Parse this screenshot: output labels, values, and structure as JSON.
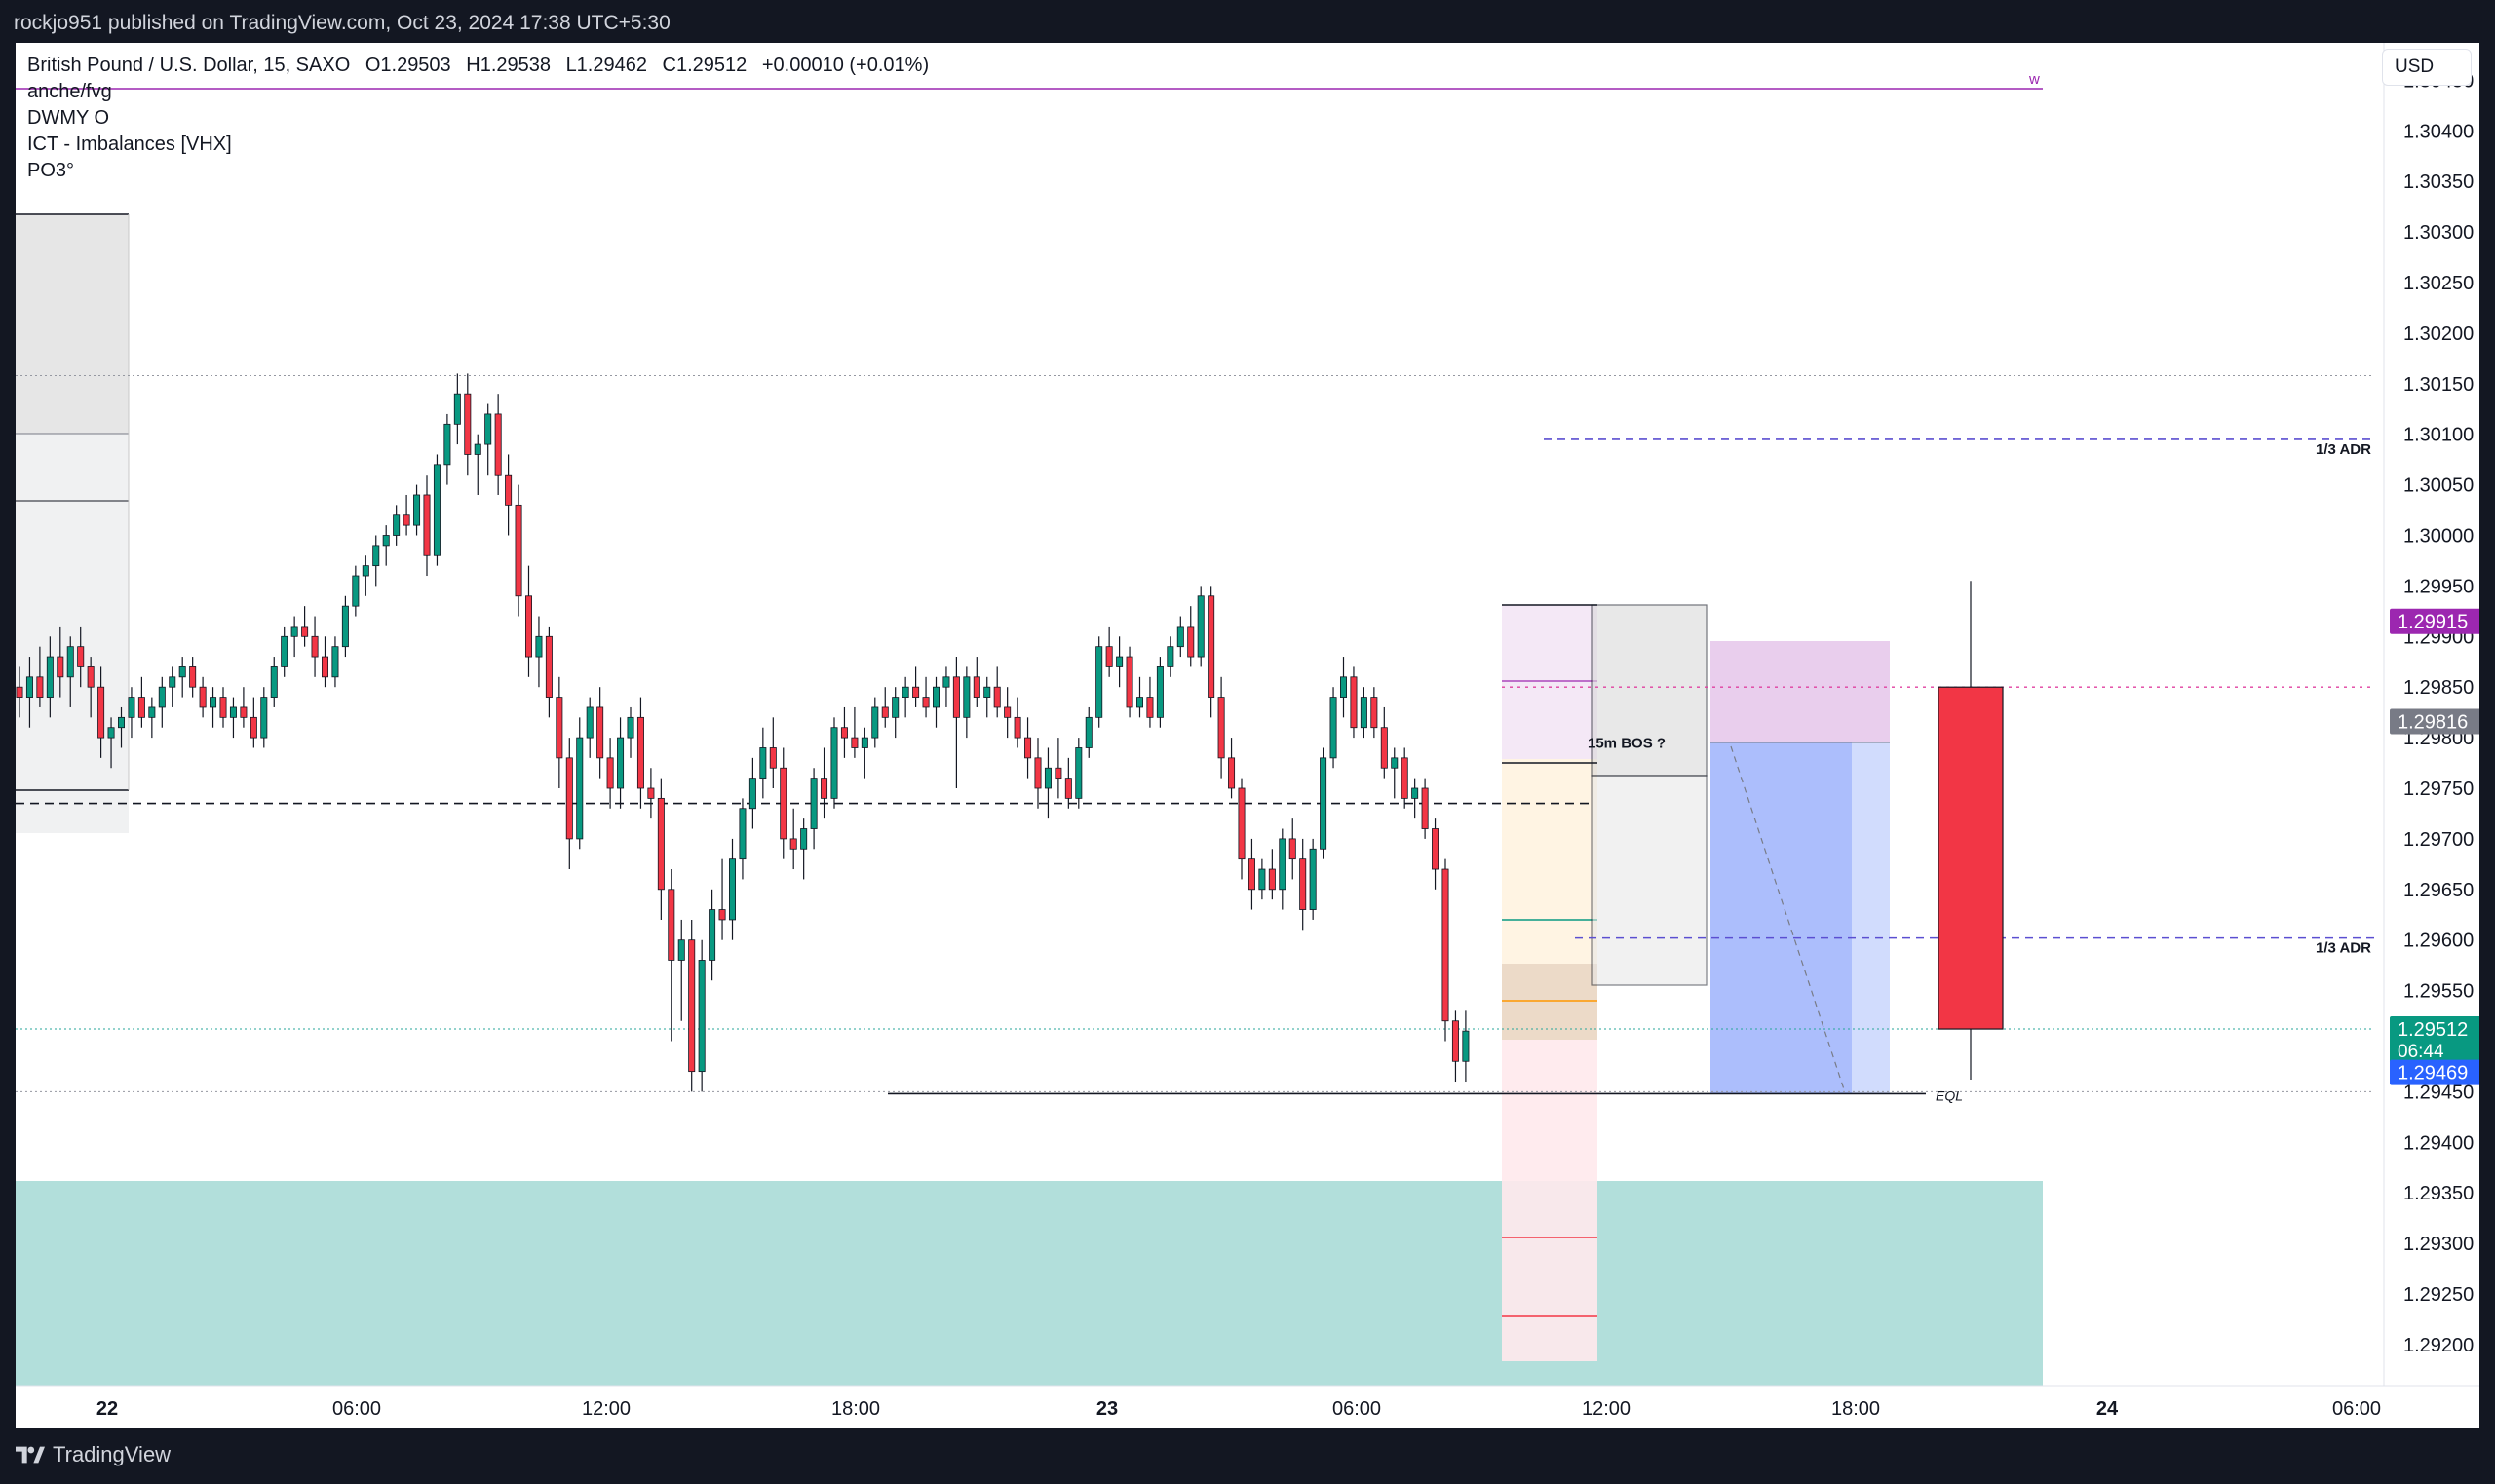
{
  "header": {
    "publish_text": "rockjo951 published on TradingView.com, Oct 23, 2024 17:38 UTC+5:30"
  },
  "legend": {
    "symbol": "British Pound / U.S. Dollar, 15, SAXO",
    "open": "O1.29503",
    "high": "H1.29538",
    "low": "L1.29462",
    "close": "C1.29512",
    "change": "+0.00010 (+0.01%)",
    "indicators": [
      "anche/fvg",
      "DWMY O",
      "ICT - Imbalances [VHX]",
      "PO3°"
    ]
  },
  "currency": "USD",
  "footer": {
    "brand": "TradingView"
  },
  "colors": {
    "up": "#089981",
    "down": "#f23645",
    "grid": "#9598a1",
    "pink_dotted": "#e040a0",
    "purple_dash": "#5b4fd1",
    "teal_zone": "#b2dfdb",
    "red_candle": "#f23645",
    "label_purple": "#9c27b0",
    "label_gray": "#787b86",
    "label_green": "#089981",
    "label_blue": "#2962ff"
  },
  "chart_data": {
    "type": "candlestick",
    "symbol": "GBPUSD",
    "timeframe": "15",
    "ylim": [
      1.2918,
      1.3048
    ],
    "y_ticks": [
      "1.30450",
      "1.30400",
      "1.30350",
      "1.30300",
      "1.30250",
      "1.30200",
      "1.30150",
      "1.30100",
      "1.30050",
      "1.30000",
      "1.29950",
      "1.29900",
      "1.29850",
      "1.29800",
      "1.29750",
      "1.29700",
      "1.29650",
      "1.29600",
      "1.29550",
      "1.29500",
      "1.29450",
      "1.29400",
      "1.29350",
      "1.29300",
      "1.29250",
      "1.29200"
    ],
    "x_ticks": [
      "22",
      "06:00",
      "12:00",
      "18:00",
      "23",
      "06:00",
      "12:00",
      "18:00",
      "24",
      "06:00"
    ],
    "price_labels": [
      {
        "text": "1.29915",
        "price": 1.29915,
        "color": "#9c27b0"
      },
      {
        "text": "1.29816",
        "price": 1.29816,
        "color": "#787b86"
      },
      {
        "text": "1.29512",
        "sub": "06:44",
        "price": 1.29512,
        "color": "#089981"
      },
      {
        "text": "1.29469",
        "price": 1.29469,
        "color": "#2962ff"
      }
    ],
    "annotations": [
      {
        "text": "1/3 ADR",
        "price": 1.30095
      },
      {
        "text": "1/3 ADR",
        "price": 1.29602
      },
      {
        "text": "15m BOS ?",
        "price": 1.29795
      },
      {
        "text": "EQL",
        "price": 1.29448
      },
      {
        "text": "w",
        "price": 1.30462
      }
    ],
    "levels": {
      "prior_high_dotted": 1.30158,
      "black_dashed": 1.29735,
      "pink_dotted": 1.2985,
      "current_dotted": 1.29512,
      "gray_dotted_low": 1.2945,
      "eql_line": 1.29448
    },
    "po3_candle": {
      "open": 1.2985,
      "high": 1.29955,
      "low": 1.29462,
      "close": 1.29512
    },
    "candles": [
      [
        1.2985,
        1.2987,
        1.2982,
        1.2984
      ],
      [
        1.2984,
        1.2988,
        1.2981,
        1.2986
      ],
      [
        1.2986,
        1.2989,
        1.2983,
        1.2984
      ],
      [
        1.2984,
        1.299,
        1.2982,
        1.2988
      ],
      [
        1.2988,
        1.2991,
        1.2984,
        1.2986
      ],
      [
        1.2986,
        1.299,
        1.2983,
        1.2989
      ],
      [
        1.2989,
        1.2991,
        1.2985,
        1.2987
      ],
      [
        1.2987,
        1.2988,
        1.2982,
        1.2985
      ],
      [
        1.2985,
        1.2987,
        1.2978,
        1.298
      ],
      [
        1.298,
        1.2982,
        1.2977,
        1.2981
      ],
      [
        1.2981,
        1.2983,
        1.2979,
        1.2982
      ],
      [
        1.2982,
        1.2985,
        1.298,
        1.2984
      ],
      [
        1.2984,
        1.2986,
        1.2981,
        1.2982
      ],
      [
        1.2982,
        1.2984,
        1.298,
        1.2983
      ],
      [
        1.2983,
        1.2986,
        1.2981,
        1.2985
      ],
      [
        1.2985,
        1.2987,
        1.2983,
        1.2986
      ],
      [
        1.2986,
        1.2988,
        1.2984,
        1.2987
      ],
      [
        1.2987,
        1.2988,
        1.2984,
        1.2985
      ],
      [
        1.2985,
        1.2986,
        1.2982,
        1.2983
      ],
      [
        1.2983,
        1.2985,
        1.2981,
        1.2984
      ],
      [
        1.2984,
        1.2985,
        1.2981,
        1.2982
      ],
      [
        1.2982,
        1.2984,
        1.298,
        1.2983
      ],
      [
        1.2983,
        1.2985,
        1.2981,
        1.2982
      ],
      [
        1.2982,
        1.2984,
        1.2979,
        1.298
      ],
      [
        1.298,
        1.2985,
        1.2979,
        1.2984
      ],
      [
        1.2984,
        1.2988,
        1.2983,
        1.2987
      ],
      [
        1.2987,
        1.2991,
        1.2986,
        1.299
      ],
      [
        1.299,
        1.2992,
        1.2988,
        1.2991
      ],
      [
        1.2991,
        1.2993,
        1.2989,
        1.299
      ],
      [
        1.299,
        1.2992,
        1.2986,
        1.2988
      ],
      [
        1.2988,
        1.299,
        1.2985,
        1.2986
      ],
      [
        1.2986,
        1.299,
        1.2985,
        1.2989
      ],
      [
        1.2989,
        1.2994,
        1.2988,
        1.2993
      ],
      [
        1.2993,
        1.2997,
        1.2992,
        1.2996
      ],
      [
        1.2996,
        1.2998,
        1.2994,
        1.2997
      ],
      [
        1.2997,
        1.3,
        1.2995,
        1.2999
      ],
      [
        1.2999,
        1.3001,
        1.2997,
        1.3
      ],
      [
        1.3,
        1.3003,
        1.2999,
        1.3002
      ],
      [
        1.3002,
        1.3004,
        1.3,
        1.3001
      ],
      [
        1.3001,
        1.3005,
        1.3,
        1.3004
      ],
      [
        1.3004,
        1.3006,
        1.2996,
        1.2998
      ],
      [
        1.2998,
        1.3008,
        1.2997,
        1.3007
      ],
      [
        1.3007,
        1.3012,
        1.3005,
        1.3011
      ],
      [
        1.3011,
        1.3016,
        1.3009,
        1.3014
      ],
      [
        1.3014,
        1.3016,
        1.3006,
        1.3008
      ],
      [
        1.3008,
        1.301,
        1.3004,
        1.3009
      ],
      [
        1.3009,
        1.3013,
        1.3006,
        1.3012
      ],
      [
        1.3012,
        1.3014,
        1.3004,
        1.3006
      ],
      [
        1.3006,
        1.3008,
        1.3,
        1.3003
      ],
      [
        1.3003,
        1.3005,
        1.2992,
        1.2994
      ],
      [
        1.2994,
        1.2997,
        1.2986,
        1.2988
      ],
      [
        1.2988,
        1.2992,
        1.2985,
        1.299
      ],
      [
        1.299,
        1.2991,
        1.2982,
        1.2984
      ],
      [
        1.2984,
        1.2986,
        1.2975,
        1.2978
      ],
      [
        1.2978,
        1.298,
        1.2967,
        1.297
      ],
      [
        1.297,
        1.2982,
        1.2969,
        1.298
      ],
      [
        1.298,
        1.2984,
        1.2978,
        1.2983
      ],
      [
        1.2983,
        1.2985,
        1.2976,
        1.2978
      ],
      [
        1.2978,
        1.298,
        1.2973,
        1.2975
      ],
      [
        1.2975,
        1.2982,
        1.2973,
        1.298
      ],
      [
        1.298,
        1.2983,
        1.2978,
        1.2982
      ],
      [
        1.2982,
        1.2984,
        1.2973,
        1.2975
      ],
      [
        1.2975,
        1.2977,
        1.2972,
        1.2974
      ],
      [
        1.2974,
        1.2976,
        1.2962,
        1.2965
      ],
      [
        1.2965,
        1.2967,
        1.295,
        1.2958
      ],
      [
        1.2958,
        1.2962,
        1.2952,
        1.296
      ],
      [
        1.296,
        1.2962,
        1.2945,
        1.2947
      ],
      [
        1.2947,
        1.296,
        1.2945,
        1.2958
      ],
      [
        1.2958,
        1.2965,
        1.2956,
        1.2963
      ],
      [
        1.2963,
        1.2968,
        1.296,
        1.2962
      ],
      [
        1.2962,
        1.297,
        1.296,
        1.2968
      ],
      [
        1.2968,
        1.2974,
        1.2966,
        1.2973
      ],
      [
        1.2973,
        1.2978,
        1.2971,
        1.2976
      ],
      [
        1.2976,
        1.2981,
        1.2974,
        1.2979
      ],
      [
        1.2979,
        1.2982,
        1.2975,
        1.2977
      ],
      [
        1.2977,
        1.2979,
        1.2968,
        1.297
      ],
      [
        1.297,
        1.2973,
        1.2967,
        1.2969
      ],
      [
        1.2969,
        1.2972,
        1.2966,
        1.2971
      ],
      [
        1.2971,
        1.2977,
        1.2969,
        1.2976
      ],
      [
        1.2976,
        1.2979,
        1.2972,
        1.2974
      ],
      [
        1.2974,
        1.2982,
        1.2973,
        1.2981
      ],
      [
        1.2981,
        1.2983,
        1.2978,
        1.298
      ],
      [
        1.298,
        1.2983,
        1.2978,
        1.2979
      ],
      [
        1.2979,
        1.2981,
        1.2976,
        1.298
      ],
      [
        1.298,
        1.2984,
        1.2979,
        1.2983
      ],
      [
        1.2983,
        1.2985,
        1.2981,
        1.2982
      ],
      [
        1.2982,
        1.2985,
        1.298,
        1.2984
      ],
      [
        1.2984,
        1.2986,
        1.2982,
        1.2985
      ],
      [
        1.2985,
        1.2987,
        1.2983,
        1.2984
      ],
      [
        1.2984,
        1.2986,
        1.2982,
        1.2983
      ],
      [
        1.2983,
        1.2986,
        1.2981,
        1.2985
      ],
      [
        1.2985,
        1.2987,
        1.2983,
        1.2986
      ],
      [
        1.2986,
        1.2988,
        1.2975,
        1.2982
      ],
      [
        1.2982,
        1.2987,
        1.298,
        1.2986
      ],
      [
        1.2986,
        1.2988,
        1.2983,
        1.2984
      ],
      [
        1.2984,
        1.2986,
        1.2982,
        1.2985
      ],
      [
        1.2985,
        1.2987,
        1.2982,
        1.2983
      ],
      [
        1.2983,
        1.2985,
        1.298,
        1.2982
      ],
      [
        1.2982,
        1.2984,
        1.2979,
        1.298
      ],
      [
        1.298,
        1.2982,
        1.2976,
        1.2978
      ],
      [
        1.2978,
        1.298,
        1.2973,
        1.2975
      ],
      [
        1.2975,
        1.2979,
        1.2972,
        1.2977
      ],
      [
        1.2977,
        1.298,
        1.2974,
        1.2976
      ],
      [
        1.2976,
        1.2978,
        1.2973,
        1.2974
      ],
      [
        1.2974,
        1.298,
        1.2973,
        1.2979
      ],
      [
        1.2979,
        1.2983,
        1.2978,
        1.2982
      ],
      [
        1.2982,
        1.299,
        1.2981,
        1.2989
      ],
      [
        1.2989,
        1.2991,
        1.2986,
        1.2987
      ],
      [
        1.2987,
        1.299,
        1.2985,
        1.2988
      ],
      [
        1.2988,
        1.2989,
        1.2982,
        1.2983
      ],
      [
        1.2983,
        1.2986,
        1.2982,
        1.2984
      ],
      [
        1.2984,
        1.2986,
        1.2981,
        1.2982
      ],
      [
        1.2982,
        1.2988,
        1.2981,
        1.2987
      ],
      [
        1.2987,
        1.299,
        1.2986,
        1.2989
      ],
      [
        1.2989,
        1.2992,
        1.2988,
        1.2991
      ],
      [
        1.2991,
        1.2993,
        1.2987,
        1.2988
      ],
      [
        1.2988,
        1.2995,
        1.2987,
        1.2994
      ],
      [
        1.2994,
        1.2995,
        1.2982,
        1.2984
      ],
      [
        1.2984,
        1.2986,
        1.2976,
        1.2978
      ],
      [
        1.2978,
        1.298,
        1.2974,
        1.2975
      ],
      [
        1.2975,
        1.2976,
        1.2966,
        1.2968
      ],
      [
        1.2968,
        1.297,
        1.2963,
        1.2965
      ],
      [
        1.2965,
        1.2968,
        1.2964,
        1.2967
      ],
      [
        1.2967,
        1.2969,
        1.2964,
        1.2965
      ],
      [
        1.2965,
        1.2971,
        1.2963,
        1.297
      ],
      [
        1.297,
        1.2972,
        1.2966,
        1.2968
      ],
      [
        1.2968,
        1.297,
        1.2961,
        1.2963
      ],
      [
        1.2963,
        1.297,
        1.2962,
        1.2969
      ],
      [
        1.2969,
        1.2979,
        1.2968,
        1.2978
      ],
      [
        1.2978,
        1.2985,
        1.2977,
        1.2984
      ],
      [
        1.2984,
        1.2988,
        1.2982,
        1.2986
      ],
      [
        1.2986,
        1.2987,
        1.298,
        1.2981
      ],
      [
        1.2981,
        1.2985,
        1.298,
        1.2984
      ],
      [
        1.2984,
        1.2985,
        1.298,
        1.2981
      ],
      [
        1.2981,
        1.2983,
        1.2976,
        1.2977
      ],
      [
        1.2977,
        1.2979,
        1.2974,
        1.2978
      ],
      [
        1.2978,
        1.2979,
        1.2973,
        1.2974
      ],
      [
        1.2974,
        1.2976,
        1.2972,
        1.2975
      ],
      [
        1.2975,
        1.2976,
        1.297,
        1.2971
      ],
      [
        1.2971,
        1.2972,
        1.2965,
        1.2967
      ],
      [
        1.2967,
        1.2968,
        1.295,
        1.2952
      ],
      [
        1.2952,
        1.2953,
        1.2946,
        1.2948
      ],
      [
        1.2948,
        1.2953,
        1.2946,
        1.2951
      ]
    ]
  }
}
